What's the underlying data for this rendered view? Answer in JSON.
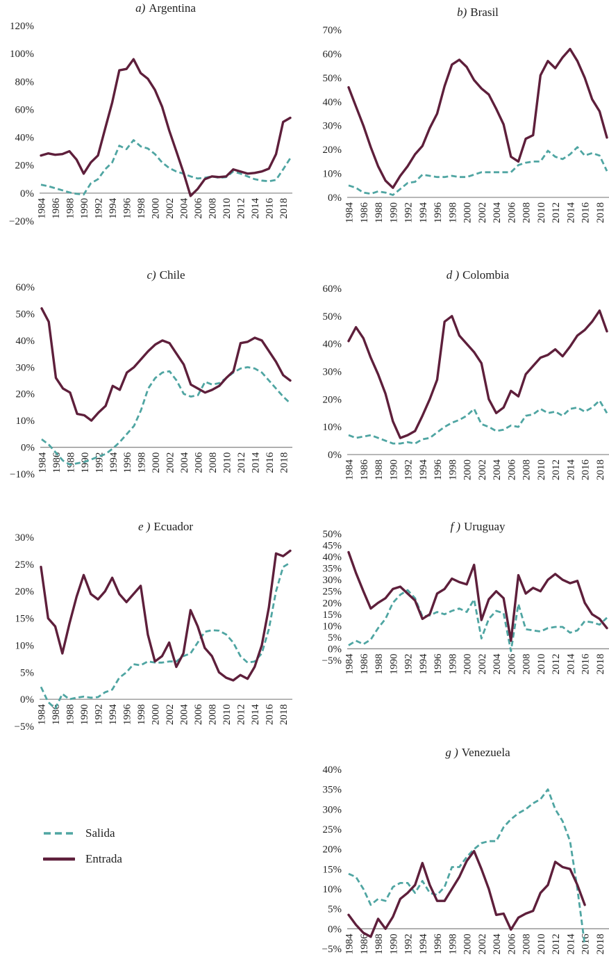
{
  "page": {
    "background": "#ffffff"
  },
  "colors": {
    "salida": "#4fa5a2",
    "entrada": "#5e1f3b",
    "axis": "#8c8c8c",
    "text": "#1f1f1f"
  },
  "legend": {
    "salida": "Salida",
    "entrada": "Entrada"
  },
  "chart_data": [
    {
      "type": "line",
      "title": "a) Argentina",
      "title_prefix": "a)",
      "title_name": "Argentina",
      "ylim": [
        -20,
        120
      ],
      "ystep": 20,
      "yticks": [
        "120%",
        "100%",
        "80%",
        "60%",
        "40%",
        "20%",
        "0%",
        "−20%"
      ],
      "x_start": 1984,
      "x_axis_end": 2019,
      "xticks": [
        "1984",
        "1986",
        "1988",
        "1990",
        "1992",
        "1994",
        "1996",
        "1998",
        "2000",
        "2002",
        "2004",
        "2006",
        "2008",
        "2010",
        "2012",
        "2014",
        "2016",
        "2018"
      ],
      "series": [
        {
          "name": "Salida",
          "style": "dashed",
          "color_key": "salida",
          "values": [
            6,
            5,
            3.5,
            2,
            0.5,
            -0.5,
            -1,
            7,
            10,
            17,
            22,
            34,
            31.5,
            38,
            33.5,
            32,
            28,
            22,
            18,
            15.5,
            14,
            12,
            10.5,
            11,
            12,
            11,
            11.5,
            15.5,
            14,
            12,
            10,
            9,
            8.5,
            9.5,
            17,
            25
          ]
        },
        {
          "name": "Entrada",
          "style": "solid",
          "color_key": "entrada",
          "values": [
            27,
            28.5,
            27.5,
            28,
            30,
            24,
            14,
            22,
            27,
            46,
            65,
            88,
            89,
            96,
            86,
            82,
            74,
            62,
            45,
            30,
            15,
            -2,
            3,
            10,
            12,
            11.5,
            12,
            17,
            15.5,
            14,
            14.5,
            15.5,
            17.5,
            28,
            51,
            54
          ]
        }
      ]
    },
    {
      "type": "line",
      "title": "b) Brasil",
      "title_prefix": "b)",
      "title_name": "Brasil",
      "ylim": [
        0,
        70
      ],
      "ystep": 10,
      "yticks": [
        "70%",
        "60%",
        "50%",
        "40%",
        "30%",
        "20%",
        "10%",
        "0%"
      ],
      "x_start": 1984,
      "x_axis_end": 2019,
      "xticks": [
        "1984",
        "1986",
        "1988",
        "1990",
        "1992",
        "1994",
        "1996",
        "1998",
        "2000",
        "2002",
        "2004",
        "2006",
        "2008",
        "2010",
        "2012",
        "2014",
        "2016",
        "2018"
      ],
      "series": [
        {
          "name": "Salida",
          "style": "dashed",
          "color_key": "salida",
          "values": [
            5,
            4,
            2,
            1.5,
            2.5,
            2,
            1,
            3.5,
            6,
            6.5,
            9.5,
            9,
            8.5,
            8.5,
            9,
            8.5,
            8.5,
            9.5,
            10.5,
            10.5,
            10.5,
            10.5,
            10.5,
            13.5,
            14.5,
            15,
            15,
            19.5,
            17,
            16,
            18,
            21,
            17.5,
            18.5,
            17.5,
            11
          ]
        },
        {
          "name": "Entrada",
          "style": "solid",
          "color_key": "entrada",
          "values": [
            46,
            38,
            30,
            21,
            13,
            7,
            4,
            9,
            13,
            18,
            21.5,
            29,
            35,
            46.5,
            55.5,
            57.5,
            54.5,
            49,
            45.5,
            43,
            37,
            30.5,
            17,
            15,
            24.5,
            26,
            51,
            57,
            54,
            58.5,
            62,
            57,
            50,
            41,
            36,
            25
          ]
        }
      ]
    },
    {
      "type": "line",
      "title": "c) Chile",
      "title_prefix": "c)",
      "title_name": "Chile",
      "ylim": [
        -10,
        60
      ],
      "ystep": 10,
      "yticks": [
        "60%",
        "50%",
        "40%",
        "30%",
        "20%",
        "10%",
        "0%",
        "−10%"
      ],
      "x_start": 1984,
      "x_axis_end": 2019,
      "xticks": [
        "1984",
        "1986",
        "1988",
        "1990",
        "1992",
        "1994",
        "1996",
        "1998",
        "2000",
        "2002",
        "2004",
        "2006",
        "2008",
        "2010",
        "2012",
        "2014",
        "2016",
        "2018"
      ],
      "series": [
        {
          "name": "Salida",
          "style": "dashed",
          "color_key": "salida",
          "values": [
            3,
            1,
            -2,
            -5,
            -6.5,
            -6,
            -5.5,
            -4.5,
            -3.5,
            -2.5,
            -0.5,
            2,
            5,
            8,
            14,
            22,
            26,
            28,
            28.5,
            25,
            20,
            19,
            19.5,
            24.5,
            23.5,
            24,
            26,
            28,
            29.5,
            30,
            29.5,
            28,
            25,
            22,
            19,
            16.5
          ]
        },
        {
          "name": "Entrada",
          "style": "solid",
          "color_key": "entrada",
          "values": [
            52,
            47,
            26,
            22,
            20.5,
            12.5,
            12,
            10,
            13,
            15.5,
            23,
            21.5,
            28,
            30,
            33,
            36,
            38.5,
            40,
            39,
            35,
            31,
            23.5,
            22,
            20.5,
            21.5,
            23,
            26,
            28.5,
            39,
            39.5,
            41,
            40,
            36,
            32,
            27,
            25
          ]
        }
      ]
    },
    {
      "type": "line",
      "title": "d) Colombia",
      "title_prefix": "d )",
      "title_name": "Colombia",
      "ylim": [
        0,
        60
      ],
      "ystep": 10,
      "yticks": [
        "60%",
        "50%",
        "40%",
        "30%",
        "20%",
        "10%",
        "0%"
      ],
      "x_start": 1984,
      "x_axis_end": 2019,
      "xticks": [
        "1984",
        "1986",
        "1988",
        "1990",
        "1992",
        "1994",
        "1996",
        "1998",
        "2000",
        "2002",
        "2004",
        "2006",
        "2008",
        "2010",
        "2012",
        "2014",
        "2016",
        "2018"
      ],
      "series": [
        {
          "name": "Salida",
          "style": "dashed",
          "color_key": "salida",
          "values": [
            7,
            6,
            6.5,
            7,
            6,
            5,
            4,
            4,
            4.5,
            4,
            5.5,
            6,
            8,
            10,
            11.5,
            12.5,
            14,
            16.5,
            11,
            10,
            8.5,
            9,
            10.5,
            10,
            14,
            14.5,
            16.5,
            15,
            15.5,
            14,
            16.5,
            17,
            15.5,
            17,
            19.5,
            15
          ]
        },
        {
          "name": "Entrada",
          "style": "solid",
          "color_key": "entrada",
          "values": [
            41,
            46,
            42,
            35,
            29,
            22,
            12,
            6,
            7,
            8.5,
            14,
            20,
            27,
            48,
            50,
            43,
            40,
            37,
            33,
            20,
            15,
            17,
            23,
            21,
            29,
            32,
            35,
            36,
            38,
            35.5,
            39,
            43,
            45,
            48,
            52,
            44.5
          ]
        }
      ]
    },
    {
      "type": "line",
      "title": "e) Ecuador",
      "title_prefix": "e )",
      "title_name": "Ecuador",
      "ylim": [
        -5,
        30
      ],
      "ystep": 5,
      "yticks": [
        "30%",
        "25%",
        "20%",
        "15%",
        "10%",
        "5%",
        "0%",
        "−5%"
      ],
      "x_start": 1984,
      "x_axis_end": 2019,
      "xticks": [
        "1984",
        "1986",
        "1988",
        "1990",
        "1992",
        "1994",
        "1996",
        "1998",
        "2000",
        "2002",
        "2004",
        "2006",
        "2008",
        "2010",
        "2012",
        "2014",
        "2016",
        "2018"
      ],
      "series": [
        {
          "name": "Salida",
          "style": "dashed",
          "color_key": "salida",
          "values": [
            2.3,
            -0.5,
            -1.7,
            1,
            0,
            0.3,
            0.5,
            0.3,
            0.4,
            1.3,
            1.8,
            4,
            5,
            6.5,
            6.3,
            7,
            6.8,
            6.8,
            7,
            7,
            8,
            8.5,
            10.5,
            12.5,
            12.8,
            12.7,
            12,
            10.5,
            8,
            6.8,
            7,
            8.5,
            13,
            20,
            24.5,
            25.3
          ]
        },
        {
          "name": "Entrada",
          "style": "solid",
          "color_key": "entrada",
          "values": [
            24.5,
            15,
            13.5,
            8.5,
            14,
            19,
            23,
            19.5,
            18.5,
            20,
            22.5,
            19.5,
            18,
            19.5,
            21,
            12,
            7,
            8,
            10.5,
            6,
            8.5,
            16.5,
            13.5,
            9.5,
            8,
            5,
            4,
            3.5,
            4.5,
            3.8,
            6,
            10,
            17,
            27,
            26.5,
            27.5
          ]
        }
      ]
    },
    {
      "type": "line",
      "title": "f) Uruguay",
      "title_prefix": "f )",
      "title_name": "Uruguay",
      "ylim": [
        -5,
        50
      ],
      "ystep": 5,
      "yticks": [
        "50%",
        "45%",
        "40%",
        "35%",
        "30%",
        "25%",
        "20%",
        "15%",
        "10%",
        "5%",
        "0%",
        "−5%"
      ],
      "x_start": 1984,
      "x_axis_end": 2019,
      "xticks": [
        "1984",
        "1986",
        "1988",
        "1990",
        "1992",
        "1994",
        "1996",
        "1998",
        "2000",
        "2002",
        "2004",
        "2006",
        "2008",
        "2010",
        "2012",
        "2014",
        "2016",
        "2018"
      ],
      "series": [
        {
          "name": "Salida",
          "style": "dashed",
          "color_key": "salida",
          "values": [
            1.5,
            3.5,
            2,
            4,
            9,
            13,
            20,
            23.5,
            25.5,
            22,
            14,
            14.5,
            16,
            15,
            16.5,
            17.5,
            16,
            21.5,
            4.5,
            13,
            16.5,
            15.5,
            -1,
            19.5,
            8.5,
            8,
            7.5,
            9,
            9.5,
            9.5,
            7,
            8,
            12,
            11.5,
            10.5,
            13.5
          ]
        },
        {
          "name": "Entrada",
          "style": "solid",
          "color_key": "entrada",
          "values": [
            42,
            33,
            25,
            17.5,
            20,
            22,
            26,
            27,
            24,
            21,
            13,
            15,
            24,
            26,
            30.5,
            29,
            28,
            36.5,
            12.5,
            21.5,
            25,
            22,
            3.5,
            32,
            24,
            26.5,
            25,
            30,
            32.5,
            30,
            28.5,
            29.5,
            20,
            15,
            13,
            9
          ]
        }
      ]
    },
    {
      "type": "line",
      "title": "g) Venezuela",
      "title_prefix": "g )",
      "title_name": "Venezuela",
      "ylim": [
        -5,
        40
      ],
      "ystep": 5,
      "yticks": [
        "40%",
        "35%",
        "30%",
        "25%",
        "20%",
        "15%",
        "10%",
        "5%",
        "0%",
        "−5%"
      ],
      "x_start": 1984,
      "x_axis_end": 2019,
      "xticks": [
        "1984",
        "1986",
        "1988",
        "1990",
        "1992",
        "1994",
        "1996",
        "1998",
        "2000",
        "2002",
        "2004",
        "2006",
        "2008",
        "2010",
        "2012",
        "2014",
        "2016",
        "2018"
      ],
      "series": [
        {
          "name": "Salida",
          "style": "dashed",
          "color_key": "salida",
          "values": [
            13.8,
            13,
            10,
            6,
            7.5,
            7,
            10.5,
            11.5,
            11.5,
            9,
            12,
            9,
            8.5,
            10.5,
            15.5,
            15.5,
            18,
            20,
            21.5,
            22,
            22,
            25.5,
            27.5,
            29,
            30,
            31.5,
            32.5,
            35,
            30,
            27,
            22,
            10,
            -4
          ]
        },
        {
          "name": "Entrada",
          "style": "solid",
          "color_key": "entrada",
          "values": [
            3.5,
            1,
            -1,
            -2,
            2.5,
            0,
            3,
            7.5,
            9,
            11,
            16.5,
            11,
            7,
            7,
            10,
            13,
            17,
            19.5,
            15,
            10,
            3.5,
            3.8,
            -0.2,
            2.8,
            3.8,
            4.5,
            9,
            11,
            16.8,
            15.5,
            15,
            11,
            6
          ]
        }
      ]
    }
  ]
}
